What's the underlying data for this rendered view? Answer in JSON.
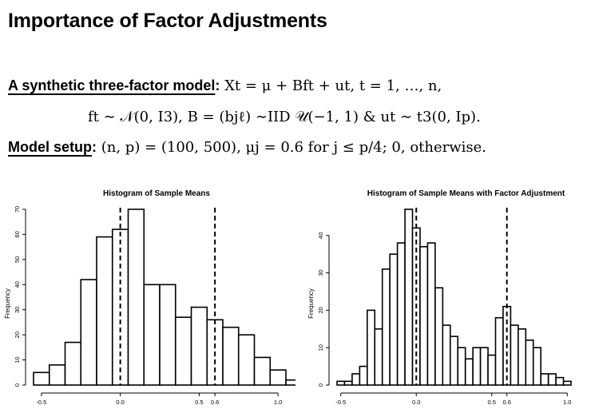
{
  "slide": {
    "title": "Importance of Factor Adjustments",
    "line1_label": "A synthetic three-factor model",
    "line1_colon": ":",
    "line1_formula": " Xt = μ + Bft + ut, t = 1, …, n,",
    "line2_formula": "ft ∼ 𝒩(0, I3),   B = (bjℓ) ∼IID 𝒰(−1, 1) & ut ∼ t3(0, Ip).",
    "line3_label": "Model setup",
    "line3_colon": ":",
    "line3_formula": " (n, p) = (100, 500), μj = 0.6 for j ≤ p/4; 0, otherwise."
  },
  "chart_data": [
    {
      "type": "bar",
      "title": "Histogram of Sample Means",
      "xlabel": "",
      "ylabel": "Frequency",
      "bin_width": 0.1,
      "bin_start": -0.55,
      "values": [
        5,
        8,
        17,
        42,
        59,
        62,
        70,
        40,
        40,
        27,
        31,
        26,
        23,
        20,
        11,
        6,
        2
      ],
      "xlim": [
        -0.55,
        1.05
      ],
      "ylim": [
        0,
        70
      ],
      "x_ticks": [
        "-0.5",
        "0.0",
        "0.5",
        "0.6",
        "1.0"
      ],
      "x_tick_values": [
        -0.5,
        0.0,
        0.5,
        0.6,
        1.0
      ],
      "y_ticks": [
        0,
        10,
        20,
        30,
        40,
        50,
        60,
        70
      ],
      "reference_lines": [
        0.0,
        0.6
      ]
    },
    {
      "type": "bar",
      "title": "Histogram of Sample Means with Factor Adjustment",
      "xlabel": "",
      "ylabel": "Frequency",
      "bin_width": 0.05,
      "bin_start": -0.525,
      "values": [
        1,
        1,
        3,
        5,
        20,
        15,
        31,
        35,
        38,
        47,
        42,
        37,
        38,
        26,
        16,
        13,
        10,
        7,
        10,
        10,
        8,
        18,
        21,
        16,
        15,
        12,
        10,
        3,
        3,
        2,
        1
      ],
      "xlim": [
        -0.525,
        1.025
      ],
      "ylim": [
        0,
        47
      ],
      "x_ticks": [
        "-0.5",
        "0.0",
        "0.5",
        "0.6",
        "1.0"
      ],
      "x_tick_values": [
        -0.5,
        0.0,
        0.5,
        0.6,
        1.0
      ],
      "y_ticks": [
        0,
        10,
        20,
        30,
        40
      ],
      "reference_lines": [
        0.0,
        0.6
      ]
    }
  ]
}
